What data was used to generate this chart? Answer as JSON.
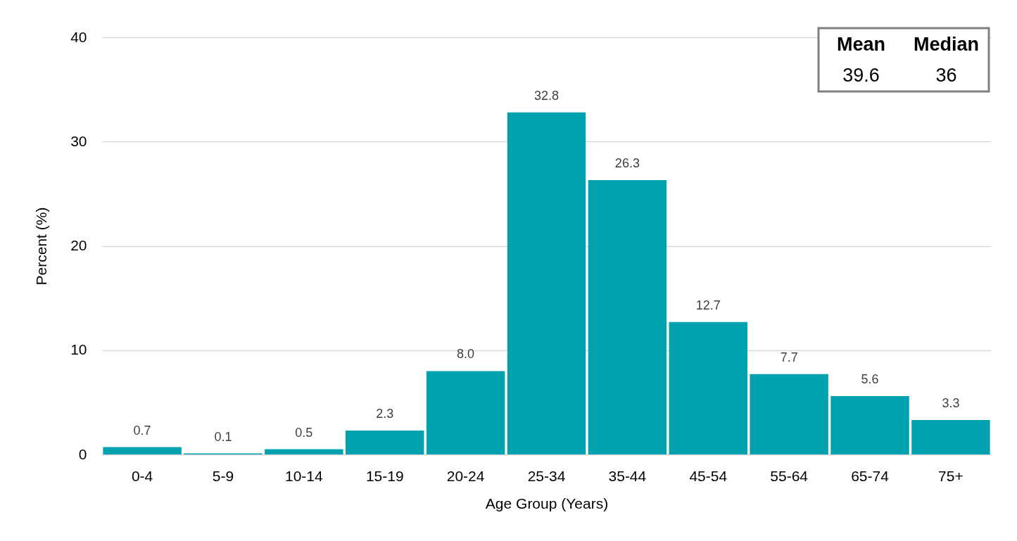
{
  "chart_data": {
    "type": "bar",
    "xlabel": "Age Group (Years)",
    "ylabel": "Percent (%)",
    "categories": [
      "0-4",
      "5-9",
      "10-14",
      "15-19",
      "20-24",
      "25-34",
      "35-44",
      "45-54",
      "55-64",
      "65-74",
      "75+"
    ],
    "values": [
      0.7,
      0.1,
      0.5,
      2.3,
      8.0,
      32.8,
      26.3,
      12.7,
      7.7,
      5.6,
      3.3
    ],
    "value_labels": [
      "0.7",
      "0.1",
      "0.5",
      "2.3",
      "8.0",
      "32.8",
      "26.3",
      "12.7",
      "7.7",
      "5.6",
      "3.3"
    ],
    "color": "#00a2b0",
    "ylim": [
      0,
      40
    ],
    "yticks": [
      0,
      10,
      20,
      30,
      40
    ],
    "grid": "y",
    "annotations": [
      "Mean",
      "Median",
      "39.6",
      "36"
    ]
  }
}
